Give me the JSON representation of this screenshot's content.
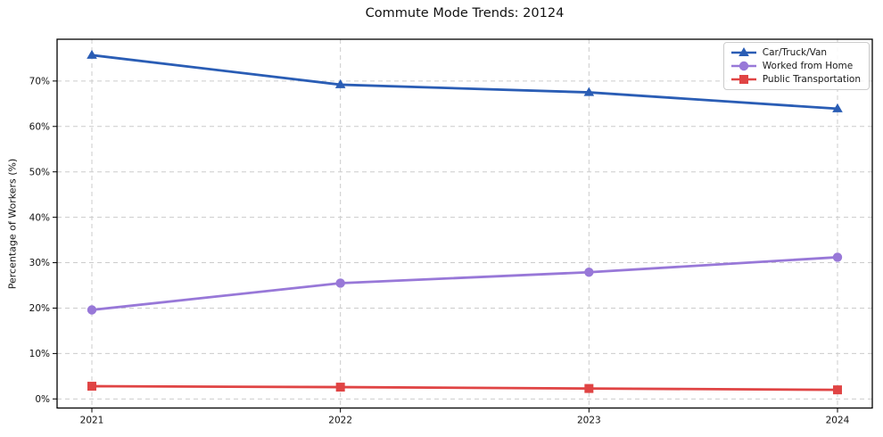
{
  "chart_data": {
    "type": "line",
    "title": "Commute Mode Trends: 20124",
    "xlabel": "",
    "ylabel": "Percentage of Workers (%)",
    "x": [
      2021,
      2022,
      2023,
      2024
    ],
    "xticklabels": [
      "2021",
      "2022",
      "2023",
      "2024"
    ],
    "yticks": [
      0,
      10,
      20,
      30,
      40,
      50,
      60,
      70
    ],
    "yticklabels": [
      "0%",
      "10%",
      "20%",
      "30%",
      "40%",
      "50%",
      "60%",
      "70%"
    ],
    "xlim": [
      2020.86,
      2024.14
    ],
    "ylim": [
      -2,
      79.2
    ],
    "grid": {
      "visible": true,
      "style": "dashed",
      "color": "#cccccc"
    },
    "legend": {
      "position": "upper right"
    },
    "colors": {
      "spine": "#000000",
      "background": "#ffffff"
    },
    "series": [
      {
        "name": "Car/Truck/Van",
        "color": "#2a5db5",
        "marker": "triangle",
        "values": [
          75.7,
          69.2,
          67.5,
          63.9
        ]
      },
      {
        "name": "Worked from Home",
        "color": "#9878d8",
        "marker": "circle",
        "values": [
          19.6,
          25.5,
          27.9,
          31.2
        ]
      },
      {
        "name": "Public Transportation",
        "color": "#e04444",
        "marker": "square",
        "values": [
          2.8,
          2.6,
          2.3,
          2.0
        ]
      }
    ]
  }
}
